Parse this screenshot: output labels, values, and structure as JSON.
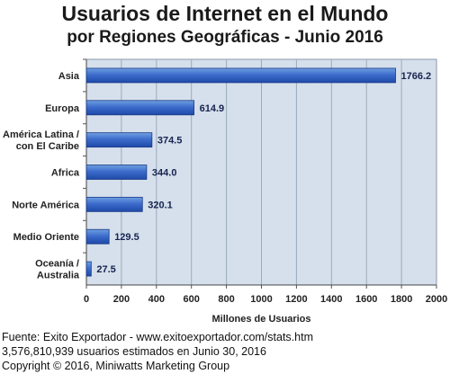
{
  "title_line1": "Usuarios de Internet en el Mundo",
  "title_line2": "por Regiones Geográficas - Junio 2016",
  "chart_data": {
    "type": "bar",
    "orientation": "horizontal",
    "categories": [
      [
        "Asia"
      ],
      [
        "Europa"
      ],
      [
        "América Latina /",
        "con El Caribe"
      ],
      [
        "Africa"
      ],
      [
        "Norte América"
      ],
      [
        "Medio Oriente"
      ],
      [
        "Oceanía  /",
        "Australia"
      ]
    ],
    "values": [
      1766.2,
      614.9,
      374.5,
      344.0,
      320.1,
      129.5,
      27.5
    ],
    "value_labels": [
      "1766.2",
      "614.9",
      "374.5",
      "344.0",
      "320.1",
      "129.5",
      "27.5"
    ],
    "xlabel": "Millones de Usuarios",
    "ylabel": "",
    "xlim": [
      0,
      2000
    ],
    "xticks": [
      0,
      200,
      400,
      600,
      800,
      1000,
      1200,
      1400,
      1600,
      1800,
      2000
    ],
    "grid": true,
    "legend": "none",
    "colors": {
      "plot_bg": "#d6e0ec",
      "bar_light": "#6e9fe0",
      "bar_dark": "#1e4aa8",
      "value_label": "#16234f",
      "grid": "#9aaabc"
    }
  },
  "footer": {
    "source": "Fuente: Exito Exportador - www.exitoexportador.com/stats.htm",
    "estimate": "3,576,810,939 usuarios estimados en Junio 30, 2016",
    "copyright": "Copyright © 2016, Miniwatts Marketing Group"
  }
}
